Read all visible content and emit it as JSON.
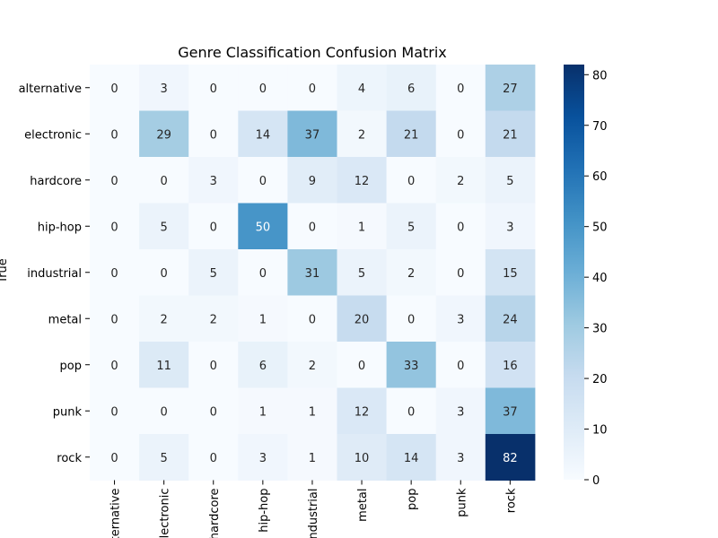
{
  "chart_data": {
    "type": "heatmap",
    "title": "Genre Classification Confusion Matrix",
    "ylabel": "True",
    "xlabel": "",
    "row_labels": [
      "alternative",
      "electronic",
      "hardcore",
      "hip-hop",
      "industrial",
      "metal",
      "pop",
      "punk",
      "rock"
    ],
    "col_labels": [
      "alternative",
      "electronic",
      "hardcore",
      "hip-hop",
      "industrial",
      "metal",
      "pop",
      "punk",
      "rock"
    ],
    "values": [
      [
        0,
        3,
        0,
        0,
        0,
        4,
        6,
        0,
        27
      ],
      [
        0,
        29,
        0,
        14,
        37,
        2,
        21,
        0,
        21
      ],
      [
        0,
        0,
        3,
        0,
        9,
        12,
        0,
        2,
        5
      ],
      [
        0,
        5,
        0,
        50,
        0,
        1,
        5,
        0,
        3
      ],
      [
        0,
        0,
        5,
        0,
        31,
        5,
        2,
        0,
        15
      ],
      [
        0,
        2,
        2,
        1,
        0,
        20,
        0,
        3,
        24
      ],
      [
        0,
        11,
        0,
        6,
        2,
        0,
        33,
        0,
        16
      ],
      [
        0,
        0,
        0,
        1,
        1,
        12,
        0,
        3,
        37
      ],
      [
        0,
        5,
        0,
        3,
        1,
        10,
        14,
        3,
        82
      ]
    ],
    "colorbar": {
      "min": 0,
      "max": 82,
      "ticks": [
        0,
        10,
        20,
        30,
        40,
        50,
        60,
        70,
        80
      ],
      "colormap": "Blues"
    }
  }
}
